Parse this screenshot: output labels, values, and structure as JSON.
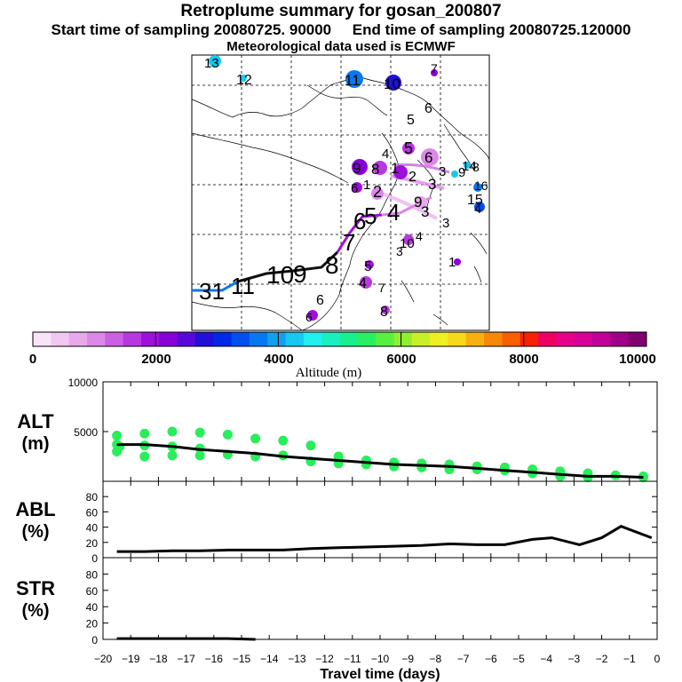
{
  "header": {
    "title": "Retroplume summary for gosan_200807",
    "sampling_line": "Start time of sampling 20080725. 90000     End time of sampling 20080725.120000",
    "met_line": "Meteorological data used is ECMWF"
  },
  "colorbar": {
    "tick_labels": [
      "0",
      "2000",
      "4000",
      "6000",
      "8000",
      "10000"
    ],
    "label": "Altitude (m)",
    "colors": [
      "#f8e4f8",
      "#f0c8f0",
      "#e8a8ec",
      "#dc88e8",
      "#cc60e4",
      "#b838e0",
      "#a010dc",
      "#8800d8",
      "#5808d8",
      "#2010d8",
      "#0028e8",
      "#0050f0",
      "#0878f0",
      "#10a0f0",
      "#18c8f0",
      "#20f0f0",
      "#18f0c0",
      "#18f090",
      "#28f060",
      "#58f040",
      "#90f030",
      "#c8f028",
      "#f0f020",
      "#f8d818",
      "#f8b010",
      "#f88808",
      "#f86000",
      "#f82000",
      "#f00060",
      "#e80088",
      "#d80098",
      "#c00098",
      "#a00088",
      "#800070"
    ]
  },
  "map": {
    "trajectory_labels": [
      "31",
      "11",
      "10",
      "9",
      "8",
      "7",
      "6",
      "5",
      "4",
      "3",
      "2",
      "1"
    ],
    "scatter_labels": [
      "13",
      "12",
      "11",
      "10",
      "7",
      "6",
      "5",
      "4",
      "3",
      "2",
      "1",
      "14",
      "15",
      "16",
      "9",
      "8"
    ]
  },
  "chart_data": [
    {
      "type": "scatter",
      "panel": "ALT",
      "ylabel": "ALT\n(m)",
      "ylim": [
        0,
        10000
      ],
      "yticks": [
        0,
        5000,
        10000
      ],
      "ytick_labels": [
        "",
        "5000",
        "10000"
      ],
      "xlim": [
        -20,
        0
      ],
      "line_color": "#000000",
      "point_color": "#28ee5a",
      "line": {
        "x": [
          -19.5,
          -18.5,
          -17.5,
          -16.5,
          -15.5,
          -14.5,
          -13.5,
          -12.5,
          -11.5,
          -10.5,
          -9.5,
          -8.5,
          -7.5,
          -6.5,
          -5.5,
          -4.5,
          -3.5,
          -2.5,
          -1.5,
          -0.5
        ],
        "y": [
          3700,
          3700,
          3500,
          3200,
          3000,
          2800,
          2500,
          2300,
          2100,
          1900,
          1700,
          1600,
          1500,
          1300,
          1100,
          900,
          700,
          500,
          500,
          400
        ]
      },
      "points": {
        "x": [
          -19.5,
          -19.5,
          -19.5,
          -19.4,
          -18.5,
          -18.5,
          -18.5,
          -17.5,
          -17.5,
          -17.5,
          -16.5,
          -16.5,
          -16.5,
          -15.5,
          -15.5,
          -14.5,
          -14.5,
          -13.5,
          -13.5,
          -12.5,
          -12.5,
          -11.5,
          -11.5,
          -10.5,
          -10.5,
          -9.5,
          -9.5,
          -8.5,
          -8.5,
          -7.5,
          -7.5,
          -6.5,
          -6.5,
          -5.5,
          -5.5,
          -4.5,
          -4.5,
          -3.5,
          -3.5,
          -2.5,
          -2.5,
          -1.5,
          -0.5,
          -0.5
        ],
        "y": [
          4600,
          3700,
          3000,
          3500,
          4800,
          3600,
          2500,
          5000,
          3500,
          2600,
          4900,
          3300,
          2600,
          4700,
          2700,
          4300,
          2500,
          4100,
          2600,
          3600,
          2000,
          2500,
          1800,
          2100,
          1700,
          1900,
          1500,
          1800,
          1400,
          1700,
          1200,
          1500,
          1200,
          1400,
          1100,
          1200,
          800,
          1000,
          500,
          800,
          400,
          600,
          500,
          400
        ]
      }
    },
    {
      "type": "line",
      "panel": "ABL",
      "ylabel": "ABL\n(%)",
      "ylim": [
        0,
        100
      ],
      "yticks": [
        0,
        20,
        40,
        60,
        80
      ],
      "ytick_labels": [
        "0",
        "20",
        "40",
        "60",
        "80"
      ],
      "xlim": [
        -20,
        0
      ],
      "x": [
        -19.5,
        -18.5,
        -17.5,
        -16.5,
        -15.5,
        -14.5,
        -13.5,
        -12.5,
        -11.5,
        -10.5,
        -9.5,
        -8.5,
        -7.5,
        -6.5,
        -6.0,
        -5.5,
        -4.5,
        -3.8,
        -2.8,
        -2.0,
        -1.3,
        -0.2
      ],
      "y": [
        8,
        8,
        9,
        9,
        10,
        10,
        10,
        12,
        13,
        14,
        15,
        16,
        18,
        17,
        17,
        17,
        24,
        26,
        17,
        26,
        41,
        26
      ]
    },
    {
      "type": "line",
      "panel": "STR",
      "ylabel": "STR\n(%)",
      "ylim": [
        0,
        100
      ],
      "yticks": [
        0,
        20,
        40,
        60,
        80
      ],
      "ytick_labels": [
        "0",
        "20",
        "40",
        "60",
        "80"
      ],
      "xlim": [
        -20,
        0
      ],
      "x": [
        -19.5,
        -18.5,
        -17.5,
        -16.5,
        -15.5,
        -14.5
      ],
      "y": [
        1,
        1,
        1,
        1,
        1,
        0
      ],
      "xticks": [
        -20,
        -19,
        -18,
        -17,
        -16,
        -15,
        -14,
        -13,
        -12,
        -11,
        -10,
        -9,
        -8,
        -7,
        -6,
        -5,
        -4,
        -3,
        -2,
        -1,
        0
      ],
      "xtick_labels": [
        "−20",
        "−19",
        "−18",
        "−17",
        "−16",
        "−15",
        "−14",
        "−13",
        "−12",
        "−11",
        "−10",
        "−9",
        "−8",
        "−7",
        "−6",
        "−5",
        "−4",
        "−3",
        "−2",
        "−1",
        "0"
      ],
      "xlabel": "Travel time (days)"
    }
  ]
}
